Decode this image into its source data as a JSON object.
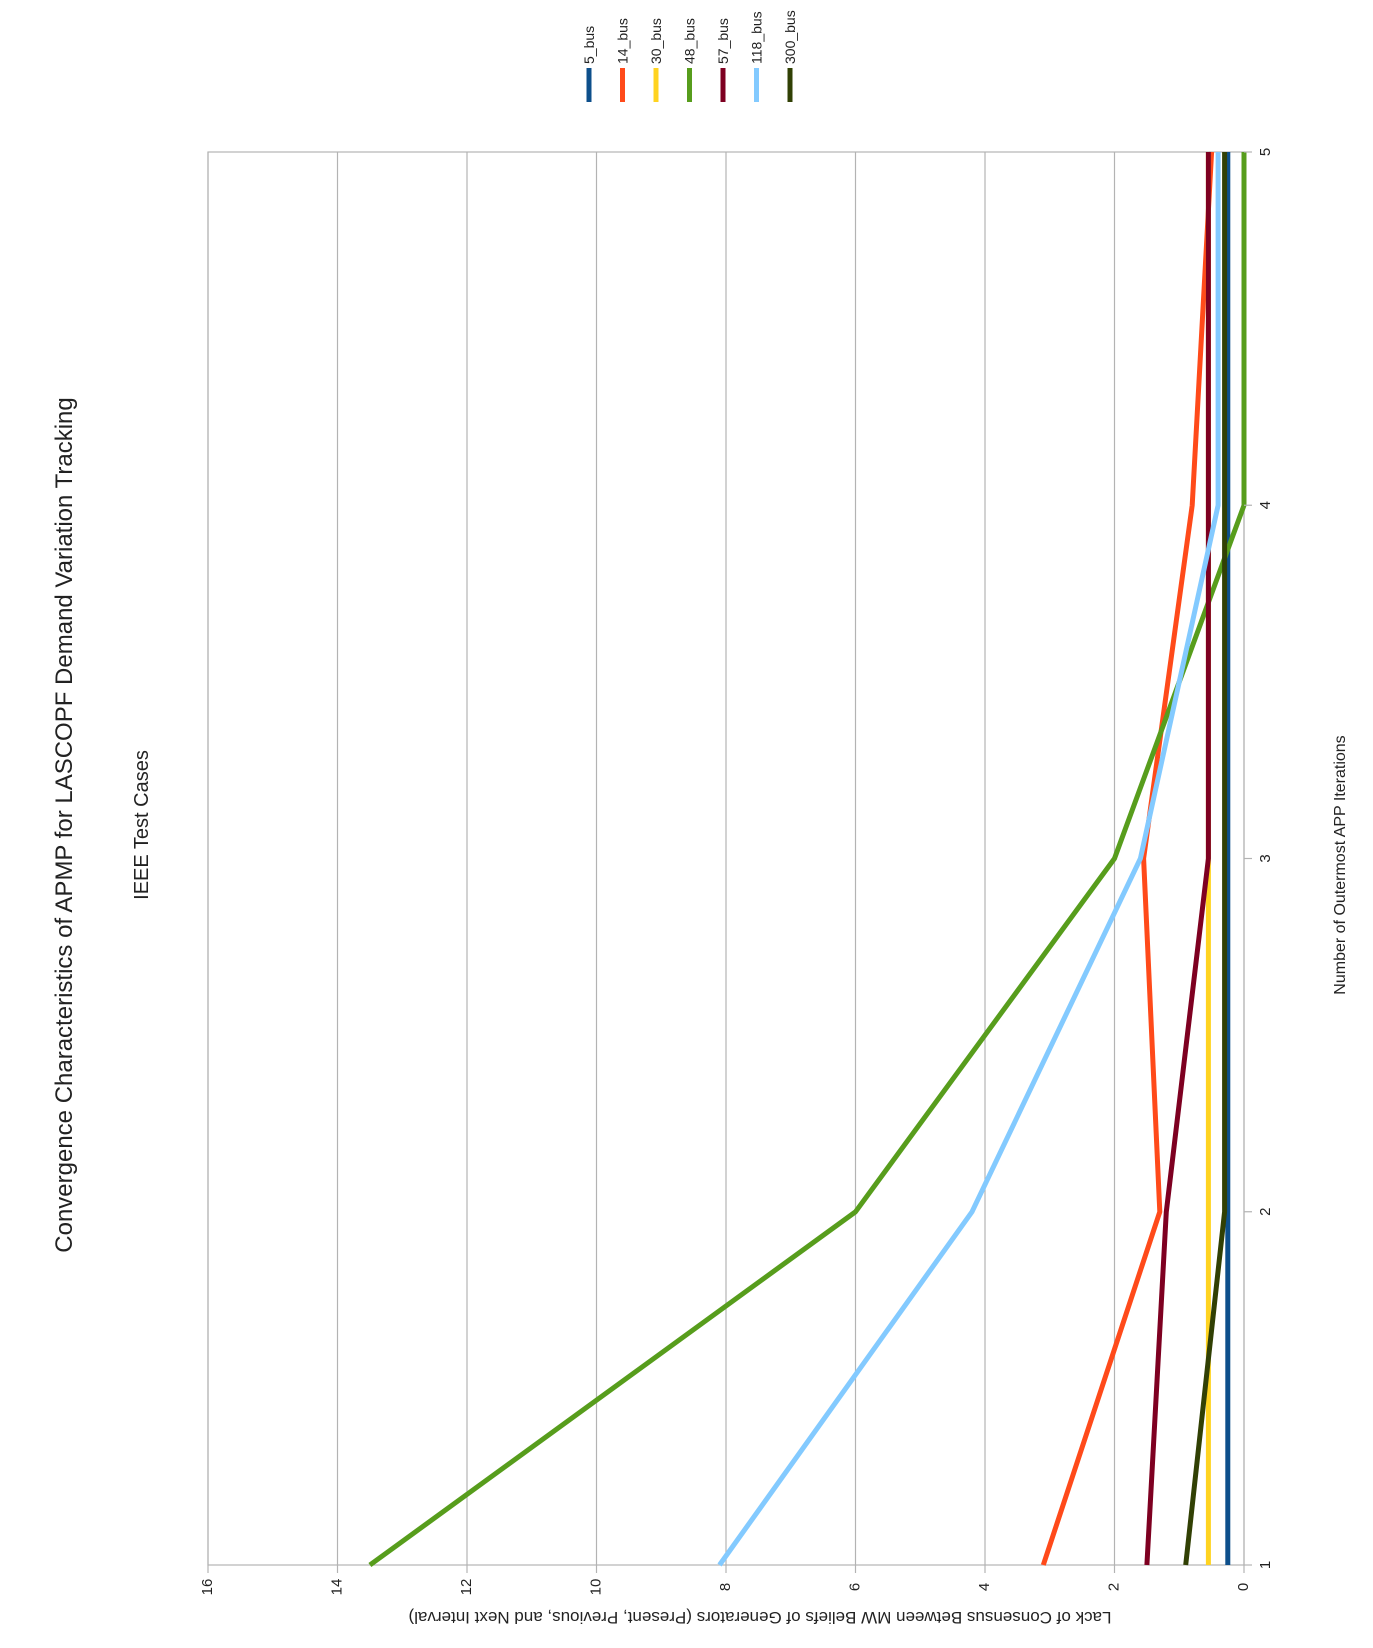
{
  "chart_data": {
    "type": "line",
    "title": "Convergence Characteristics of APMP for LASCOPF Demand Variation Tracking",
    "subtitle": "IEEE Test Cases",
    "xlabel": "Number of Outermost APP Iterations",
    "ylabel": "Lack of Consensus Between MW Beliefs of Generators (Present, Previous, and Next Interval)",
    "x": [
      1,
      2,
      3,
      4,
      5
    ],
    "xticks": [
      "1",
      "2",
      "3",
      "4",
      "5"
    ],
    "xlim": [
      1,
      5
    ],
    "ylim": [
      0,
      16
    ],
    "yticks": [
      "0",
      "2",
      "4",
      "6",
      "8",
      "10",
      "12",
      "14",
      "16"
    ],
    "grid": true,
    "legend_position": "top",
    "orientation": "rotated 90° clockwise",
    "series": [
      {
        "name": "5_bus",
        "color": "#0d4f8b",
        "values": [
          0.25,
          0.25,
          0.25,
          0.25,
          0.25
        ]
      },
      {
        "name": "14_bus",
        "color": "#ff4a1a",
        "values": [
          3.1,
          1.3,
          1.55,
          0.8,
          0.5
        ]
      },
      {
        "name": "30_bus",
        "color": "#ffd320",
        "values": [
          0.55,
          0.55,
          0.55,
          0.55,
          0.55
        ]
      },
      {
        "name": "48_bus",
        "color": "#579d1c",
        "values": [
          13.5,
          6.0,
          2.0,
          0.0,
          0.0
        ]
      },
      {
        "name": "57_bus",
        "color": "#7e0021",
        "values": [
          1.5,
          1.2,
          0.55,
          0.55,
          0.55
        ]
      },
      {
        "name": "118_bus",
        "color": "#83caff",
        "values": [
          8.1,
          4.2,
          1.6,
          0.4,
          0.4
        ]
      },
      {
        "name": "300_bus",
        "color": "#314004",
        "values": [
          0.9,
          0.3,
          0.3,
          0.3,
          0.3
        ]
      }
    ]
  }
}
